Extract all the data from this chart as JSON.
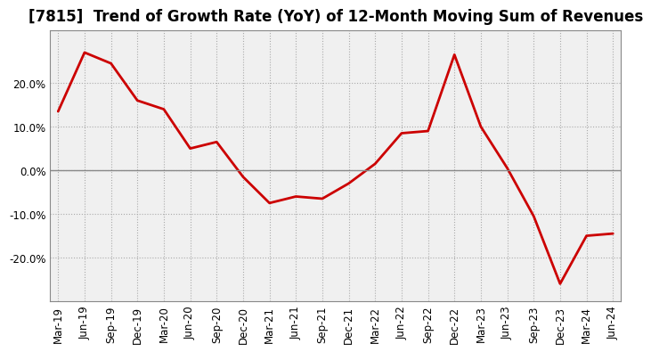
{
  "title": "[7815]  Trend of Growth Rate (YoY) of 12-Month Moving Sum of Revenues",
  "line_color": "#cc0000",
  "background_color": "#ffffff",
  "plot_background": "#f0f0f0",
  "grid_color": "#aaaaaa",
  "x_labels": [
    "Mar-19",
    "Jun-19",
    "Sep-19",
    "Dec-19",
    "Mar-20",
    "Jun-20",
    "Sep-20",
    "Dec-20",
    "Mar-21",
    "Jun-21",
    "Sep-21",
    "Dec-21",
    "Mar-22",
    "Jun-22",
    "Sep-22",
    "Dec-22",
    "Mar-23",
    "Jun-23",
    "Sep-23",
    "Dec-23",
    "Mar-24",
    "Jun-24"
  ],
  "y_values": [
    13.5,
    27.0,
    24.5,
    16.0,
    14.0,
    5.0,
    6.5,
    -1.5,
    -7.5,
    -6.0,
    -6.5,
    -3.0,
    1.5,
    8.5,
    9.0,
    26.5,
    10.0,
    0.5,
    -10.5,
    -26.0,
    -15.0,
    -14.5
  ],
  "ylim": [
    -30,
    32
  ],
  "yticks": [
    -20.0,
    -10.0,
    0.0,
    10.0,
    20.0
  ],
  "title_fontsize": 12,
  "tick_fontsize": 8.5
}
